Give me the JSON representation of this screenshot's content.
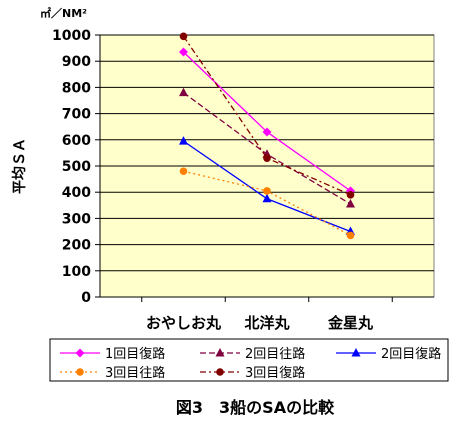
{
  "chart_data": {
    "type": "line",
    "unit": "㎡／NM²",
    "ylabel": "平均ＳＡ",
    "caption": "図3　3船のSAの比較",
    "categories": [
      "おやしお丸",
      "北洋丸",
      "金星丸"
    ],
    "ylim": [
      0,
      1000
    ],
    "yticks": [
      "0",
      "100",
      "200",
      "300",
      "400",
      "500",
      "600",
      "700",
      "800",
      "900",
      "1000"
    ],
    "grid": true,
    "legend_position": "bottom",
    "plot_background": "#ffffcc",
    "series": [
      {
        "name": "1回目復路",
        "values": [
          935,
          630,
          405
        ],
        "color": "#ff00ff",
        "marker": "diamond",
        "dash": "solid"
      },
      {
        "name": "2回目往路",
        "values": [
          780,
          545,
          355
        ],
        "color": "#800040",
        "marker": "triangle",
        "dash": "dash"
      },
      {
        "name": "2回目復路",
        "values": [
          595,
          375,
          250
        ],
        "color": "#0000ff",
        "marker": "triangle",
        "dash": "solid"
      },
      {
        "name": "3回目往路",
        "values": [
          480,
          405,
          235
        ],
        "color": "#ff8000",
        "marker": "circle",
        "dash": "dot"
      },
      {
        "name": "3回目復路",
        "values": [
          995,
          530,
          390
        ],
        "color": "#800000",
        "marker": "circle",
        "dash": "dashdot"
      }
    ]
  }
}
